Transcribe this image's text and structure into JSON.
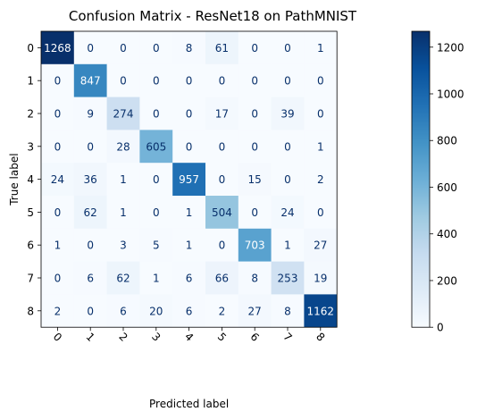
{
  "chart_data": {
    "type": "heatmap",
    "title": "Confusion Matrix - ResNet18 on PathMNIST",
    "xlabel": "Predicted label",
    "ylabel": "True label",
    "x_categories": [
      "0",
      "1",
      "2",
      "3",
      "4",
      "5",
      "6",
      "7",
      "8"
    ],
    "y_categories": [
      "0",
      "1",
      "2",
      "3",
      "4",
      "5",
      "6",
      "7",
      "8"
    ],
    "values": [
      [
        1268,
        0,
        0,
        0,
        8,
        61,
        0,
        0,
        1
      ],
      [
        0,
        847,
        0,
        0,
        0,
        0,
        0,
        0,
        0
      ],
      [
        0,
        9,
        274,
        0,
        0,
        17,
        0,
        39,
        0
      ],
      [
        0,
        0,
        28,
        605,
        0,
        0,
        0,
        0,
        1
      ],
      [
        24,
        36,
        1,
        0,
        957,
        0,
        15,
        0,
        2
      ],
      [
        0,
        62,
        1,
        0,
        1,
        504,
        0,
        24,
        0
      ],
      [
        1,
        0,
        3,
        5,
        1,
        0,
        703,
        1,
        27
      ],
      [
        0,
        6,
        62,
        1,
        6,
        66,
        8,
        253,
        19
      ],
      [
        2,
        0,
        6,
        20,
        6,
        2,
        27,
        8,
        1162
      ]
    ],
    "colormap": "Blues",
    "color_low": "#f7fbff",
    "color_high": "#08306b",
    "value_range": [
      0,
      1268
    ],
    "colorbar_ticks": [
      0,
      200,
      400,
      600,
      800,
      1000,
      1200
    ],
    "x_tick_rotation_deg": 45,
    "grid": false
  }
}
